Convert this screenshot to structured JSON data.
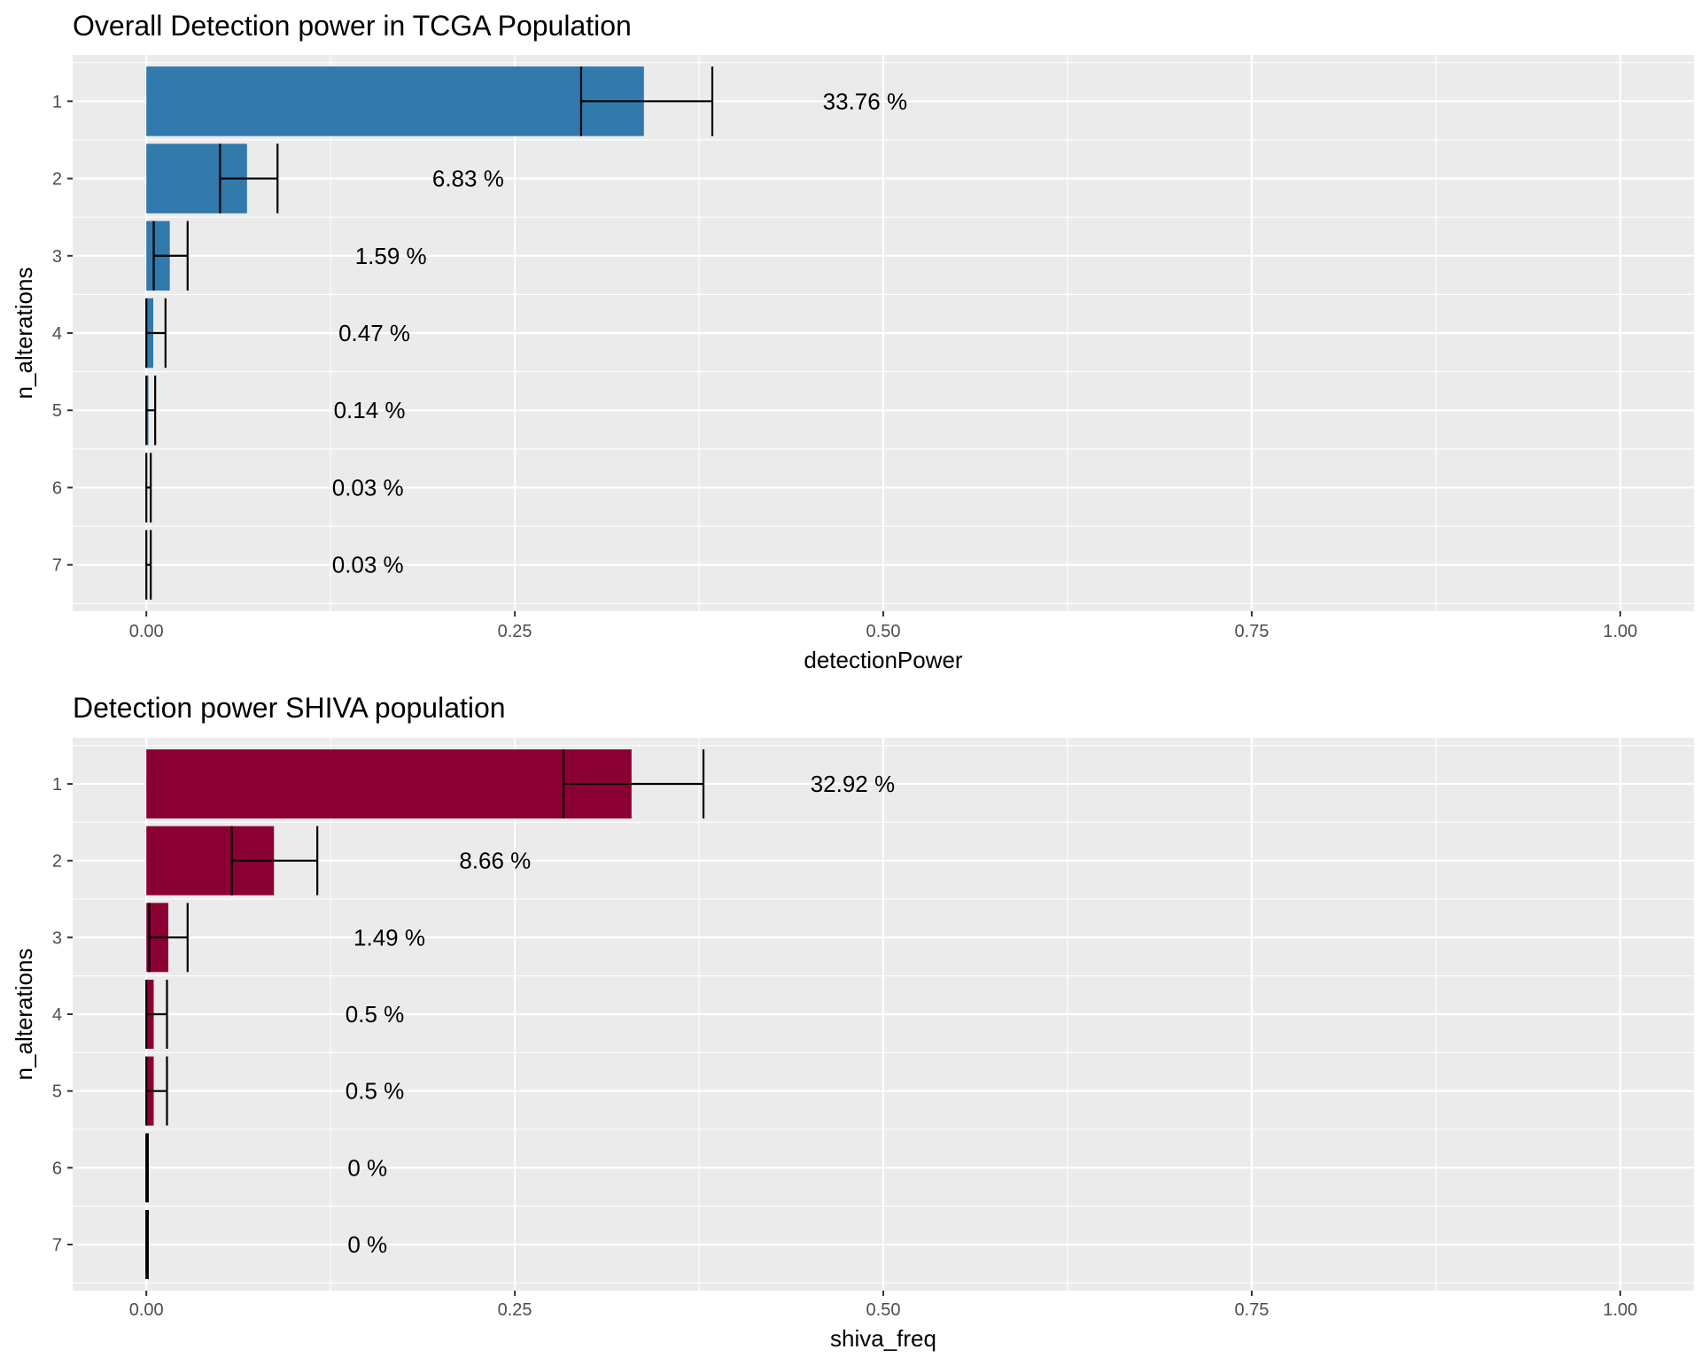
{
  "chart_data": [
    {
      "type": "bar",
      "orientation": "horizontal",
      "title": "Overall Detection power in TCGA Population",
      "xlabel": "detectionPower",
      "ylabel": "n_alterations",
      "xlim": [
        -0.05,
        1.05
      ],
      "xticks": [
        0.0,
        0.25,
        0.5,
        0.75,
        1.0
      ],
      "xtick_labels": [
        "0.00",
        "0.25",
        "0.50",
        "0.75",
        "1.00"
      ],
      "grid": true,
      "bar_color": "#3279AC",
      "categories": [
        "1",
        "2",
        "3",
        "4",
        "5",
        "6",
        "7"
      ],
      "values": [
        0.3376,
        0.0683,
        0.0159,
        0.0047,
        0.0014,
        0.0003,
        0.0003
      ],
      "error_low": [
        0.295,
        0.05,
        0.005,
        0.0,
        0.0,
        0.0,
        0.0
      ],
      "error_high": [
        0.384,
        0.089,
        0.028,
        0.013,
        0.006,
        0.003,
        0.003
      ],
      "labels": [
        "33.76 %",
        "6.83 %",
        "1.59 %",
        "0.47 %",
        "0.14 %",
        "0.03 %",
        "0.03 %"
      ]
    },
    {
      "type": "bar",
      "orientation": "horizontal",
      "title": "Detection power SHIVA population",
      "xlabel": "shiva_freq",
      "ylabel": "n_alterations",
      "xlim": [
        -0.05,
        1.05
      ],
      "xticks": [
        0.0,
        0.25,
        0.5,
        0.75,
        1.0
      ],
      "xtick_labels": [
        "0.00",
        "0.25",
        "0.50",
        "0.75",
        "1.00"
      ],
      "grid": true,
      "bar_color": "#8B0033",
      "categories": [
        "1",
        "2",
        "3",
        "4",
        "5",
        "6",
        "7"
      ],
      "values": [
        0.3292,
        0.0866,
        0.0149,
        0.005,
        0.005,
        0.0,
        0.0
      ],
      "error_low": [
        0.283,
        0.058,
        0.002,
        0.0,
        0.0,
        0.0,
        0.0
      ],
      "error_high": [
        0.378,
        0.116,
        0.028,
        0.014,
        0.014,
        0.001,
        0.001
      ],
      "labels": [
        "32.92 %",
        "8.66 %",
        "1.49 %",
        "0.5 %",
        "0.5 %",
        "0 %",
        "0 %"
      ]
    }
  ]
}
